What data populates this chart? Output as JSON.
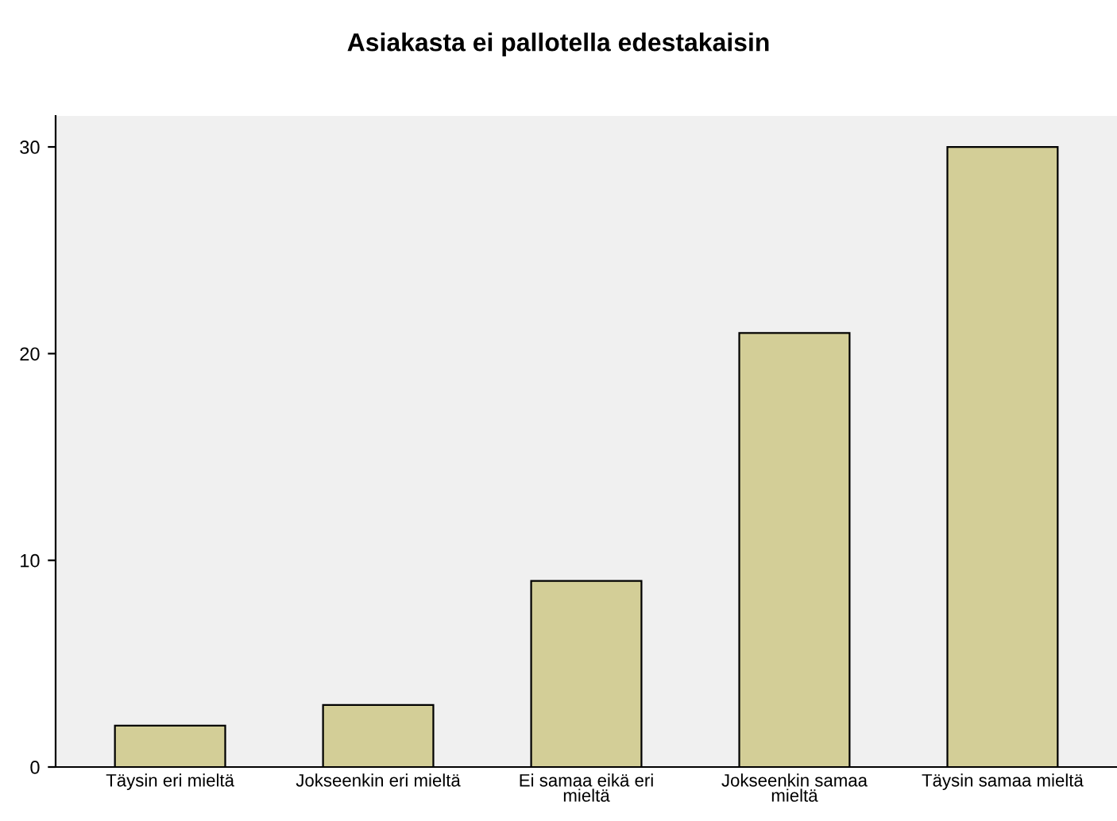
{
  "chart_data": {
    "type": "bar",
    "title": "Asiakasta ei pallotella edestakaisin",
    "categories": [
      "Täysin eri mieltä",
      "Jokseenkin eri mieltä",
      "Ei samaa eikä eri\nmieltä",
      "Jokseenkin samaa\nmieltä",
      "Täysin samaa mieltä"
    ],
    "values": [
      2,
      3,
      9,
      21,
      30
    ],
    "color": "#d3ce97",
    "ylim": [
      0,
      31.5
    ],
    "yticks": [
      0,
      10,
      20,
      30
    ],
    "grid": false,
    "legend": false
  }
}
